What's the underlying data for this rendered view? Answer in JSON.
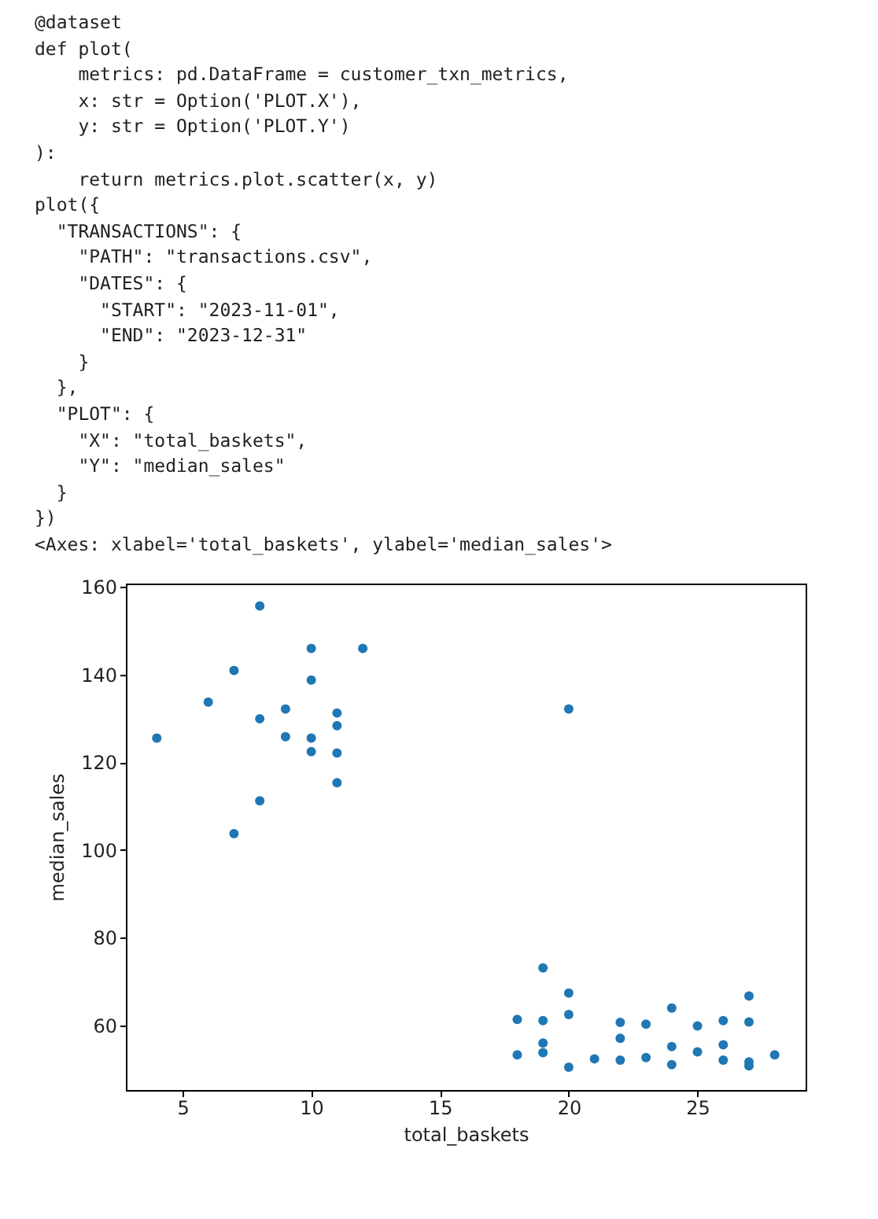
{
  "chart_data": {
    "type": "scatter",
    "xlabel": "total_baskets",
    "ylabel": "median_sales",
    "annotations": [
      "@dataset",
      "def plot(",
      "    metrics: pd.DataFrame = customer_txn_metrics,",
      "    x: str = Option('PLOT.X'),",
      "    y: str = Option('PLOT.Y')",
      "):",
      "    return metrics.plot.scatter(x, y)",
      "plot({",
      "  \"TRANSACTIONS\": {",
      "    \"PATH\": \"transactions.csv\",",
      "    \"DATES\": {",
      "      \"START\": \"2023-11-01\",",
      "      \"END\": \"2023-12-31\"",
      "    }",
      "  },",
      "  \"PLOT\": {",
      "    \"X\": \"total_baskets\",",
      "    \"Y\": \"median_sales\"",
      "  }",
      "})",
      "<Axes: xlabel='total_baskets', ylabel='median_sales'>"
    ],
    "x": [
      4,
      6,
      7,
      7,
      8,
      8,
      8,
      9,
      9,
      10,
      10,
      10,
      10,
      11,
      11,
      11,
      11,
      12,
      20,
      18,
      18,
      19,
      19,
      19,
      19,
      20,
      20,
      20,
      21,
      22,
      22,
      22,
      23,
      23,
      24,
      24,
      24,
      25,
      25,
      26,
      26,
      26,
      27,
      27,
      27,
      27,
      28
    ],
    "series": [
      {
        "color": "#1f77b4",
        "values": [
          125.5,
          133.7,
          140.9,
          103.7,
          155.6,
          129.9,
          111.2,
          132.1,
          125.8,
          145.9,
          138.7,
          125.5,
          122.4,
          131.2,
          128.3,
          122.1,
          115.3,
          145.9,
          132.1,
          61.4,
          53.3,
          73.1,
          61.1,
          56.0,
          53.8,
          67.4,
          62.5,
          50.5,
          52.4,
          60.7,
          57.1,
          52.1,
          60.3,
          52.7,
          64.0,
          55.2,
          51.1,
          59.9,
          54.0,
          61.1,
          55.6,
          52.1,
          66.7,
          60.8,
          51.7,
          50.8,
          53.3
        ]
      }
    ],
    "xlim": [
      2.8,
      29.2
    ],
    "ylim": [
      45.3,
      160.7
    ],
    "xticks": [
      5,
      10,
      15,
      20,
      25
    ],
    "yticks": [
      60,
      80,
      100,
      120,
      140,
      160
    ],
    "grid": false,
    "marker": "circle"
  }
}
